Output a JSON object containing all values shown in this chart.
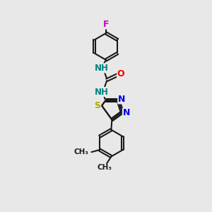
{
  "bg_color": "#e8e8e8",
  "bond_color": "#1a1a1a",
  "bond_width": 1.5,
  "atom_colors": {
    "F": "#cc00cc",
    "N": "#0000ee",
    "O": "#ee0000",
    "S": "#aaaa00",
    "C": "#1a1a1a",
    "NH": "#008080"
  },
  "font_size": 8.5
}
